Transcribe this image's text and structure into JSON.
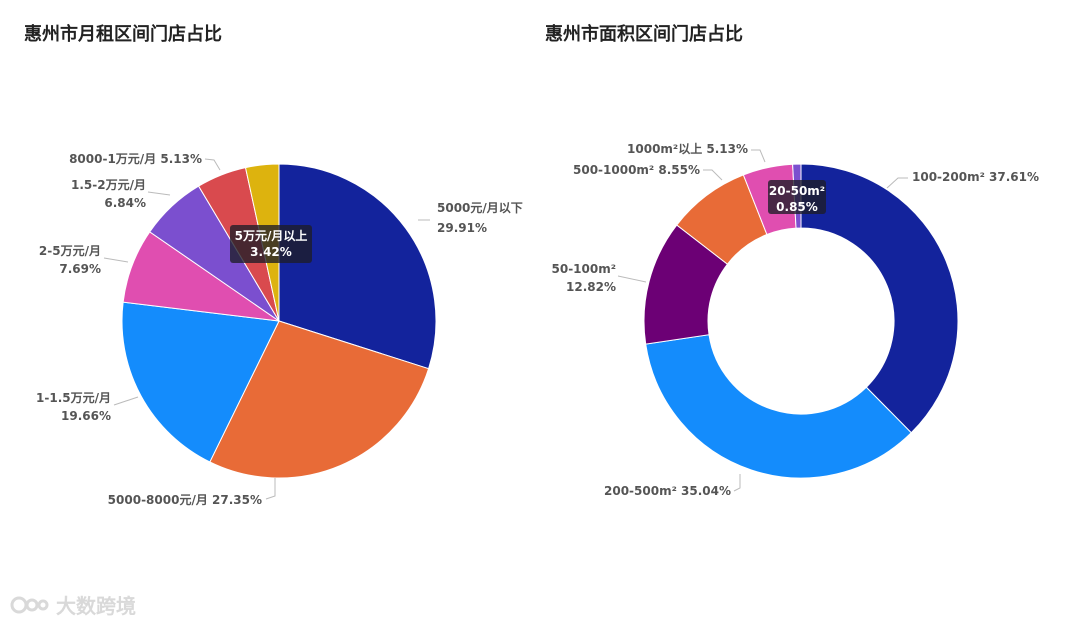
{
  "chart_data": [
    {
      "type": "pie",
      "title": "惠州市月租区间门店占比",
      "slices": [
        {
          "label": "5000元/月以下",
          "value": 29.91,
          "percent_text": "29.91%",
          "color": "#13239c"
        },
        {
          "label": "5000-8000元/月",
          "value": 27.35,
          "percent_text": "27.35%",
          "color": "#e86b37"
        },
        {
          "label": "1-1.5万元/月",
          "value": 19.66,
          "percent_text": "19.66%",
          "color": "#148cfc"
        },
        {
          "label": "2-5万元/月",
          "value": 7.69,
          "percent_text": "7.69%",
          "color": "#e04eb0"
        },
        {
          "label": "1.5-2万元/月",
          "value": 6.84,
          "percent_text": "6.84%",
          "color": "#7b4fcf"
        },
        {
          "label": "8000-1万元/月",
          "value": 5.13,
          "percent_text": "5.13%",
          "color": "#d94a4e"
        },
        {
          "label": "5万元/月以上",
          "value": 3.42,
          "percent_text": "3.42%",
          "color": "#ddb30e"
        }
      ]
    },
    {
      "type": "pie",
      "title": "惠州市面积区间门店占比",
      "donut": true,
      "slices": [
        {
          "label": "100-200m²",
          "value": 37.61,
          "percent_text": "37.61%",
          "color": "#13239c"
        },
        {
          "label": "200-500m²",
          "value": 35.04,
          "percent_text": "35.04%",
          "color": "#148cfc"
        },
        {
          "label": "50-100m²",
          "value": 12.82,
          "percent_text": "12.82%",
          "color": "#6c0075"
        },
        {
          "label": "500-1000m²",
          "value": 8.55,
          "percent_text": "8.55%",
          "color": "#e86b37"
        },
        {
          "label": "1000m²以上",
          "value": 5.13,
          "percent_text": "5.13%",
          "color": "#e04eb0"
        },
        {
          "label": "20-50m²",
          "value": 0.85,
          "percent_text": "0.85%",
          "color": "#7b4fcf"
        }
      ]
    }
  ],
  "watermark": {
    "text": "大数跨境",
    "logo_icon": "brand-logo-icon"
  },
  "colors": {
    "label_text": "#555555",
    "leader_line": "#bbbbbb",
    "tooltip_bg": "rgba(30,30,40,0.78)"
  }
}
